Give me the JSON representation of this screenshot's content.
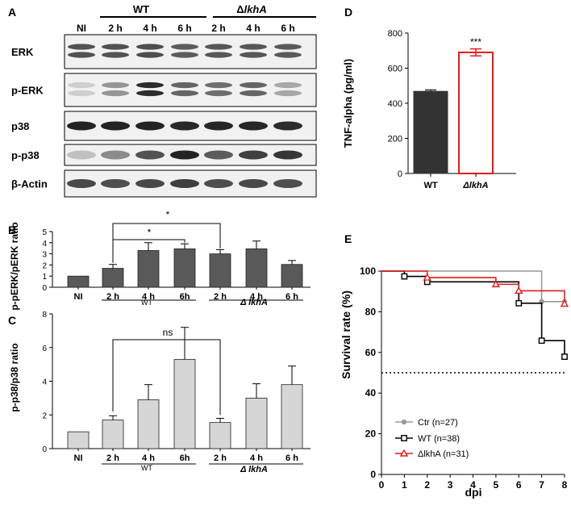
{
  "panels": {
    "A": {
      "letter": "A",
      "group_wt": "WT",
      "group_mut_symbol": "Δ",
      "group_mut_name": "lkhA",
      "lanes": [
        "NI",
        "2 h",
        "4 h",
        "6 h",
        "2 h",
        "4 h",
        "6 h"
      ],
      "blots": [
        {
          "label": "ERK",
          "intensity": [
            0.7,
            0.7,
            0.72,
            0.65,
            0.68,
            0.68,
            0.66
          ],
          "bands": 2
        },
        {
          "label": "p-ERK",
          "intensity": [
            0.05,
            0.35,
            0.9,
            0.6,
            0.55,
            0.6,
            0.25
          ],
          "bands": 2
        },
        {
          "label": "p38",
          "intensity": [
            0.95,
            0.95,
            0.95,
            0.92,
            0.93,
            0.93,
            0.9
          ],
          "bands": 1
        },
        {
          "label": "p-p38",
          "intensity": [
            0.12,
            0.4,
            0.7,
            0.95,
            0.65,
            0.8,
            0.85
          ],
          "bands": 1
        },
        {
          "label": "β-Actin",
          "intensity": [
            0.75,
            0.72,
            0.75,
            0.8,
            0.72,
            0.75,
            0.72
          ],
          "bands": 1
        }
      ]
    },
    "B": {
      "letter": "B",
      "sig_top": "*",
      "sig_inner": "*",
      "wt_label": "WT",
      "mut_label": "Δ lkhA",
      "chart_data": {
        "type": "bar",
        "categories": [
          "NI",
          "2 h",
          "4 h",
          "6h",
          "2 h",
          "4 h",
          "6 h"
        ],
        "values": [
          1.0,
          1.7,
          3.3,
          3.45,
          3.0,
          3.45,
          2.05
        ],
        "errors": [
          0,
          0.35,
          0.7,
          0.45,
          0.38,
          0.7,
          0.35
        ],
        "ylabel": "p-pERK/pERK ratio",
        "ylim": [
          0,
          5
        ],
        "yticks": [
          "0",
          "1",
          "2",
          "3",
          "4",
          "5"
        ],
        "bar_color": "#595959"
      }
    },
    "C": {
      "letter": "C",
      "sig": "ns",
      "wt_label": "WT",
      "mut_label": "Δ lkhA",
      "chart_data": {
        "type": "bar",
        "categories": [
          "NI",
          "2 h",
          "4 h",
          "6h",
          "2 h",
          "4 h",
          "6 h"
        ],
        "values": [
          1.0,
          1.7,
          2.9,
          5.3,
          1.55,
          3.0,
          3.8
        ],
        "errors": [
          0,
          0.25,
          0.9,
          1.9,
          0.25,
          0.85,
          1.1
        ],
        "ylabel": "p-p38/p38 ratio",
        "ylim": [
          0,
          8
        ],
        "yticks": [
          "0",
          "2",
          "4",
          "6",
          "8"
        ],
        "bar_color": "#d6d6d6"
      }
    },
    "D": {
      "letter": "D",
      "sig": "***",
      "chart_data": {
        "type": "bar",
        "categories": [
          "WT",
          "ΔlkhA"
        ],
        "values": [
          468,
          690
        ],
        "errors": [
          8,
          20
        ],
        "ylabel": "TNF-alpha (pg/ml)",
        "ylim": [
          0,
          800
        ],
        "yticks": [
          "0",
          "200",
          "400",
          "600",
          "800"
        ],
        "colors": [
          "#333333",
          "#e41a1c"
        ]
      }
    },
    "E": {
      "letter": "E",
      "chart_data": {
        "type": "line",
        "xlabel": "dpi",
        "ylabel": "Survival rate (%)",
        "xlim": [
          0,
          8
        ],
        "ylim": [
          0,
          100
        ],
        "xticks": [
          "0",
          "1",
          "2",
          "3",
          "4",
          "5",
          "6",
          "7",
          "8"
        ],
        "yticks": [
          "0",
          "20",
          "40",
          "60",
          "80",
          "100"
        ],
        "reference_line": 50,
        "series": [
          {
            "name": "Ctr (n=27)",
            "color": "#999999",
            "marker": "circle",
            "steps": [
              [
                0,
                100
              ],
              [
                7,
                85
              ],
              [
                8,
                85
              ]
            ],
            "markers": [
              [
                7,
                85
              ],
              [
                8,
                85
              ]
            ]
          },
          {
            "name": "WT (n=38)",
            "color": "#000000",
            "marker": "square",
            "steps": [
              [
                0,
                100
              ],
              [
                1,
                97.4
              ],
              [
                2,
                94.7
              ],
              [
                6,
                84.2
              ],
              [
                7,
                65.8
              ],
              [
                8,
                57.9
              ]
            ],
            "markers": [
              [
                1,
                97.4
              ],
              [
                2,
                94.7
              ],
              [
                6,
                84.2
              ],
              [
                7,
                65.8
              ],
              [
                8,
                57.9
              ]
            ]
          },
          {
            "name": "ΔlkhA (n=31)",
            "color": "#e41a1c",
            "marker": "triangle",
            "steps": [
              [
                0,
                100
              ],
              [
                2,
                96.8
              ],
              [
                5,
                93.5
              ],
              [
                6,
                90.3
              ],
              [
                8,
                83.9
              ]
            ],
            "markers": [
              [
                2,
                96.8
              ],
              [
                5,
                93.5
              ],
              [
                6,
                90.3
              ],
              [
                8,
                83.9
              ]
            ]
          }
        ]
      }
    }
  }
}
